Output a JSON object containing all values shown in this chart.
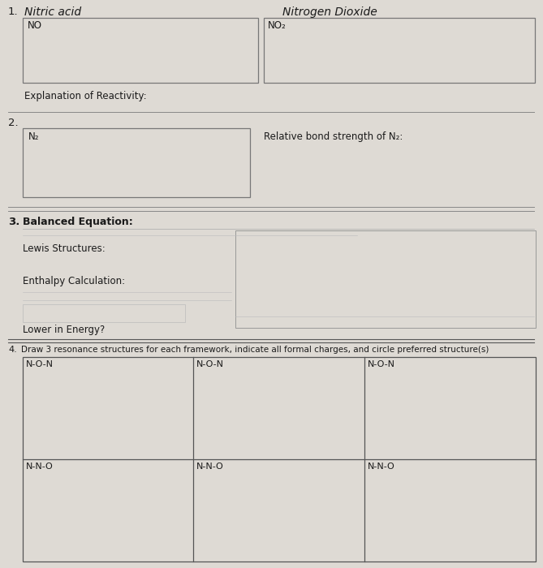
{
  "bg_color": "#dedad4",
  "box_color": "#888888",
  "line_color": "#555555",
  "text_color": "#1a1a1a",
  "title1": "Nitric acid",
  "title1b": "Nitrogen Dioxide",
  "label1_left": "NO",
  "label1_right": "NO₂",
  "explain_label": "Explanation of Reactivity:",
  "num2": "2.",
  "label2_box": "N₂",
  "label2_right": "Relative bond strength of N₂:",
  "num3": "3.",
  "label3a": "Balanced Equation:",
  "label3b": "Lewis Structures:",
  "label3c": "Enthalpy Calculation:",
  "label3d": "Lower in Energy?",
  "num4": "4.",
  "label4": "Draw 3 resonance structures for each framework, indicate all formal charges, and circle preferred structure(s)",
  "non_label": "N-O-N",
  "nno_label": "N-N-O",
  "num1_label": "1."
}
